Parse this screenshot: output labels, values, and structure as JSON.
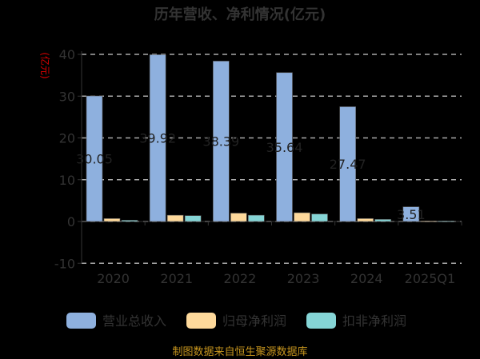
{
  "chart_data": {
    "type": "bar",
    "title": "历年营收、净利情况(亿元)",
    "ylabel": "(亿元)",
    "categories": [
      "2020",
      "2021",
      "2022",
      "2023",
      "2024",
      "2025Q1"
    ],
    "ylim": [
      -10,
      40
    ],
    "yticks": [
      -10,
      0,
      10,
      20,
      30,
      40
    ],
    "grid": true,
    "legend_position": "bottom",
    "series": [
      {
        "name": "营业总收入",
        "values": [
          30.05,
          39.92,
          38.39,
          35.64,
          27.47,
          3.51
        ],
        "color": "#8eb0de",
        "labels": [
          "30.05",
          "39.92",
          "38.39",
          "35.64",
          "27.47",
          "3.51"
        ]
      },
      {
        "name": "归母净利润",
        "values": [
          0.7,
          1.5,
          2.0,
          2.1,
          0.7,
          0.1
        ],
        "color": "#fed99b"
      },
      {
        "name": "扣非净利润",
        "values": [
          0.3,
          1.4,
          1.5,
          1.8,
          0.5,
          0.1
        ],
        "color": "#85d5d6"
      }
    ]
  },
  "footer": "制图数据来自恒生聚源数据库"
}
